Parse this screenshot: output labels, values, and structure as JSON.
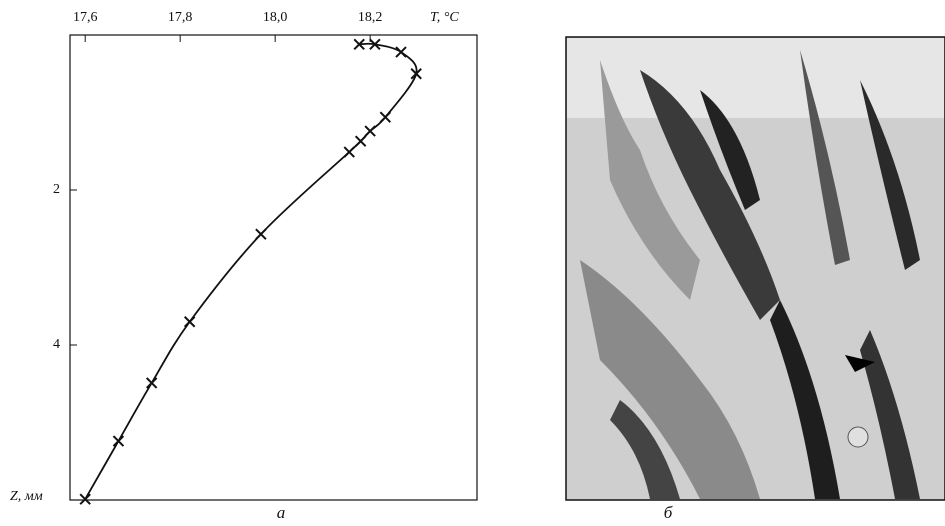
{
  "chart_data": {
    "type": "line",
    "x_label": "T, °C",
    "y_label": "Z, мм",
    "x": [
      18.177,
      18.21,
      18.265,
      18.297,
      18.232,
      18.2,
      18.18,
      18.156,
      17.97,
      17.82,
      17.74,
      17.67,
      17.6
    ],
    "values": [
      0.12,
      0.12,
      0.22,
      0.5,
      1.06,
      1.24,
      1.37,
      1.51,
      2.57,
      3.7,
      4.49,
      5.24,
      5.99
    ],
    "color": "#111111",
    "marker": "x",
    "xlim": [
      17.568,
      18.425
    ],
    "xticks": [
      {
        "value": 17.6,
        "label": "17,6"
      },
      {
        "value": 17.8,
        "label": "17,8"
      },
      {
        "value": 18.0,
        "label": "18,0"
      },
      {
        "value": 18.2,
        "label": "18,2"
      }
    ],
    "ylim": [
      0,
      6
    ],
    "yticks": [
      2,
      4
    ],
    "y_inverted": true
  },
  "panels": [
    "а",
    "б"
  ]
}
